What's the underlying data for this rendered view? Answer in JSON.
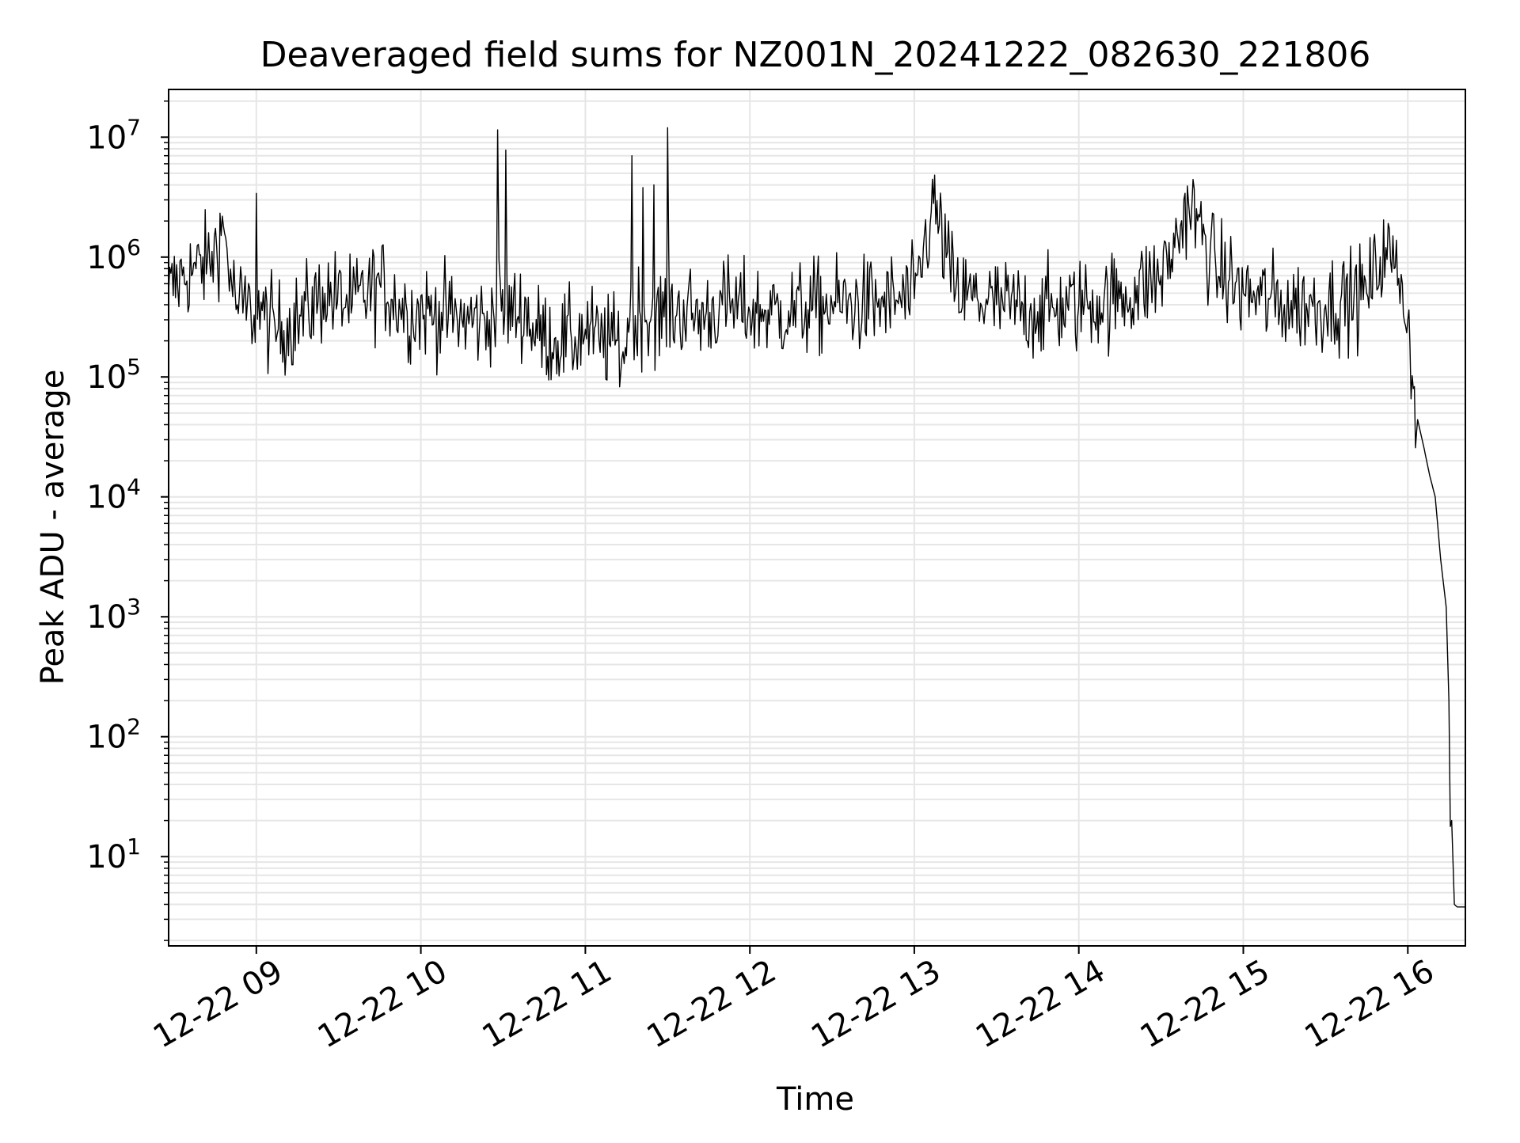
{
  "chart_data": {
    "type": "line",
    "title": "Deaveraged field sums for NZ001N_20241222_082630_221806",
    "xlabel": "Time",
    "ylabel": "Peak ADU - average",
    "yscale": "log",
    "grid": true,
    "legend": "none",
    "xlim": [
      "2024-12-22 08:28",
      "2024-12-22 16:21"
    ],
    "ylim": [
      1.8,
      25000000
    ],
    "x_ticks": [
      "12-22 09",
      "12-22 10",
      "12-22 11",
      "12-22 12",
      "12-22 13",
      "12-22 14",
      "12-22 15",
      "12-22 16"
    ],
    "y_ticks": [
      {
        "base": "10",
        "exp": "1"
      },
      {
        "base": "10",
        "exp": "2"
      },
      {
        "base": "10",
        "exp": "3"
      },
      {
        "base": "10",
        "exp": "4"
      },
      {
        "base": "10",
        "exp": "5"
      },
      {
        "base": "10",
        "exp": "6"
      },
      {
        "base": "10",
        "exp": "7"
      }
    ],
    "line_color": "#000000",
    "grid_color": "#e6e6e6",
    "series": [
      {
        "x": [
          "2024-12-22 08:28",
          "2024-12-22 08:33",
          "2024-12-22 08:38",
          "2024-12-22 08:43",
          "2024-12-22 08:48",
          "2024-12-22 08:51",
          "2024-12-22 08:53",
          "2024-12-22 08:58",
          "2024-12-22 09:00",
          "2024-12-22 09:03",
          "2024-12-22 09:08",
          "2024-12-22 09:15",
          "2024-12-22 09:25",
          "2024-12-22 09:35",
          "2024-12-22 09:45",
          "2024-12-22 09:55",
          "2024-12-22 10:05",
          "2024-12-22 10:15",
          "2024-12-22 10:25",
          "2024-12-22 10:28",
          "2024-12-22 10:29",
          "2024-12-22 10:31",
          "2024-12-22 10:40",
          "2024-12-22 10:50",
          "2024-12-22 10:55",
          "2024-12-22 11:00",
          "2024-12-22 11:05",
          "2024-12-22 11:10",
          "2024-12-22 11:15",
          "2024-12-22 11:17",
          "2024-12-22 11:19",
          "2024-12-22 11:21",
          "2024-12-22 11:23",
          "2024-12-22 11:25",
          "2024-12-22 11:27",
          "2024-12-22 11:30",
          "2024-12-22 11:40",
          "2024-12-22 11:50",
          "2024-12-22 12:00",
          "2024-12-22 12:15",
          "2024-12-22 12:30",
          "2024-12-22 12:45",
          "2024-12-22 13:00",
          "2024-12-22 13:07",
          "2024-12-22 13:15",
          "2024-12-22 13:30",
          "2024-12-22 13:45",
          "2024-12-22 14:00",
          "2024-12-22 14:15",
          "2024-12-22 14:30",
          "2024-12-22 14:35",
          "2024-12-22 14:40",
          "2024-12-22 14:50",
          "2024-12-22 15:00",
          "2024-12-22 15:15",
          "2024-12-22 15:30",
          "2024-12-22 15:45",
          "2024-12-22 15:52",
          "2024-12-22 15:55",
          "2024-12-22 15:58",
          "2024-12-22 16:00",
          "2024-12-22 16:02",
          "2024-12-22 16:04",
          "2024-12-22 16:06",
          "2024-12-22 16:08",
          "2024-12-22 16:10",
          "2024-12-22 16:12",
          "2024-12-22 16:14",
          "2024-12-22 16:15",
          "2024-12-22 16:16",
          "2024-12-22 16:17",
          "2024-12-22 16:18",
          "2024-12-22 16:19",
          "2024-12-22 16:20",
          "2024-12-22 16:21"
        ],
        "y": [
          500000,
          700000,
          800000,
          900000,
          1800000,
          600000,
          400000,
          350000,
          3400000,
          300000,
          250000,
          300000,
          500000,
          400000,
          600000,
          350000,
          350000,
          300000,
          300000,
          11500000,
          600000,
          7800000,
          250000,
          200000,
          200000,
          250000,
          200000,
          200000,
          150000,
          7000000,
          150000,
          3800000,
          150000,
          4000000,
          150000,
          12000000,
          300000,
          400000,
          350000,
          350000,
          400000,
          400000,
          450000,
          2800000,
          500000,
          400000,
          350000,
          400000,
          450000,
          700000,
          1200000,
          2900000,
          800000,
          500000,
          400000,
          400000,
          500000,
          1200000,
          800000,
          600000,
          300000,
          80000,
          40000,
          25000,
          15000,
          10000,
          3000,
          1200,
          200,
          20,
          4,
          3.8,
          3.8,
          3.8,
          3.8
        ]
      }
    ]
  }
}
